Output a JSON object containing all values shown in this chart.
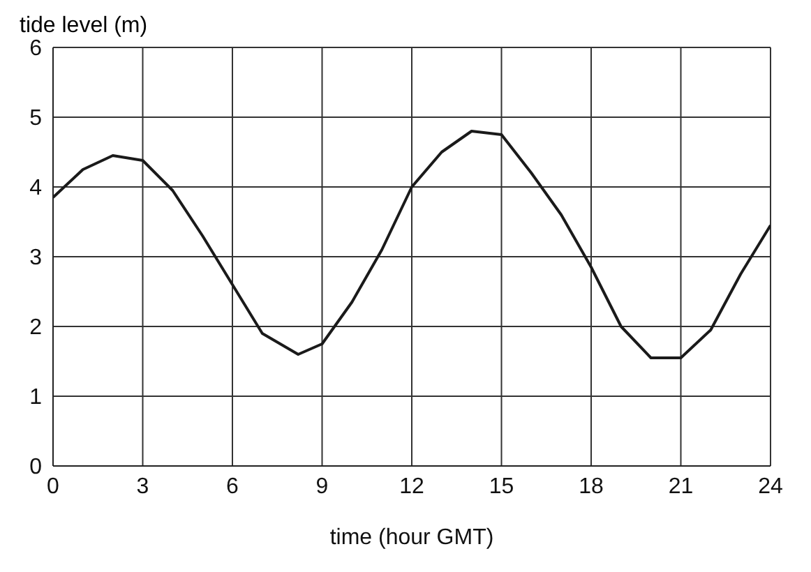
{
  "chart_data": {
    "type": "line",
    "ylabel": "tide level (m)",
    "xlabel": "time (hour GMT)",
    "x": [
      0,
      1,
      2,
      3,
      4,
      5,
      6,
      7,
      8.2,
      9,
      10,
      11,
      12,
      13,
      14,
      15,
      16,
      17,
      18,
      19,
      20,
      21,
      22,
      23,
      24
    ],
    "series": [
      {
        "color": "#1a1a1a",
        "values": [
          3.85,
          4.25,
          4.45,
          4.38,
          3.95,
          3.3,
          2.6,
          1.9,
          1.6,
          1.75,
          2.35,
          3.1,
          4.0,
          4.5,
          4.8,
          4.75,
          4.2,
          3.6,
          2.85,
          2.0,
          1.55,
          1.55,
          1.95,
          2.75,
          3.45
        ]
      }
    ],
    "xlim": [
      0,
      24
    ],
    "xticks": [
      0,
      3,
      6,
      9,
      12,
      15,
      18,
      21,
      24
    ],
    "ylim": [
      0,
      6
    ],
    "yticks": [
      0,
      1,
      2,
      3,
      4,
      5,
      6
    ],
    "grid": true,
    "legend": false,
    "marker": "none",
    "line_style": "solid"
  }
}
